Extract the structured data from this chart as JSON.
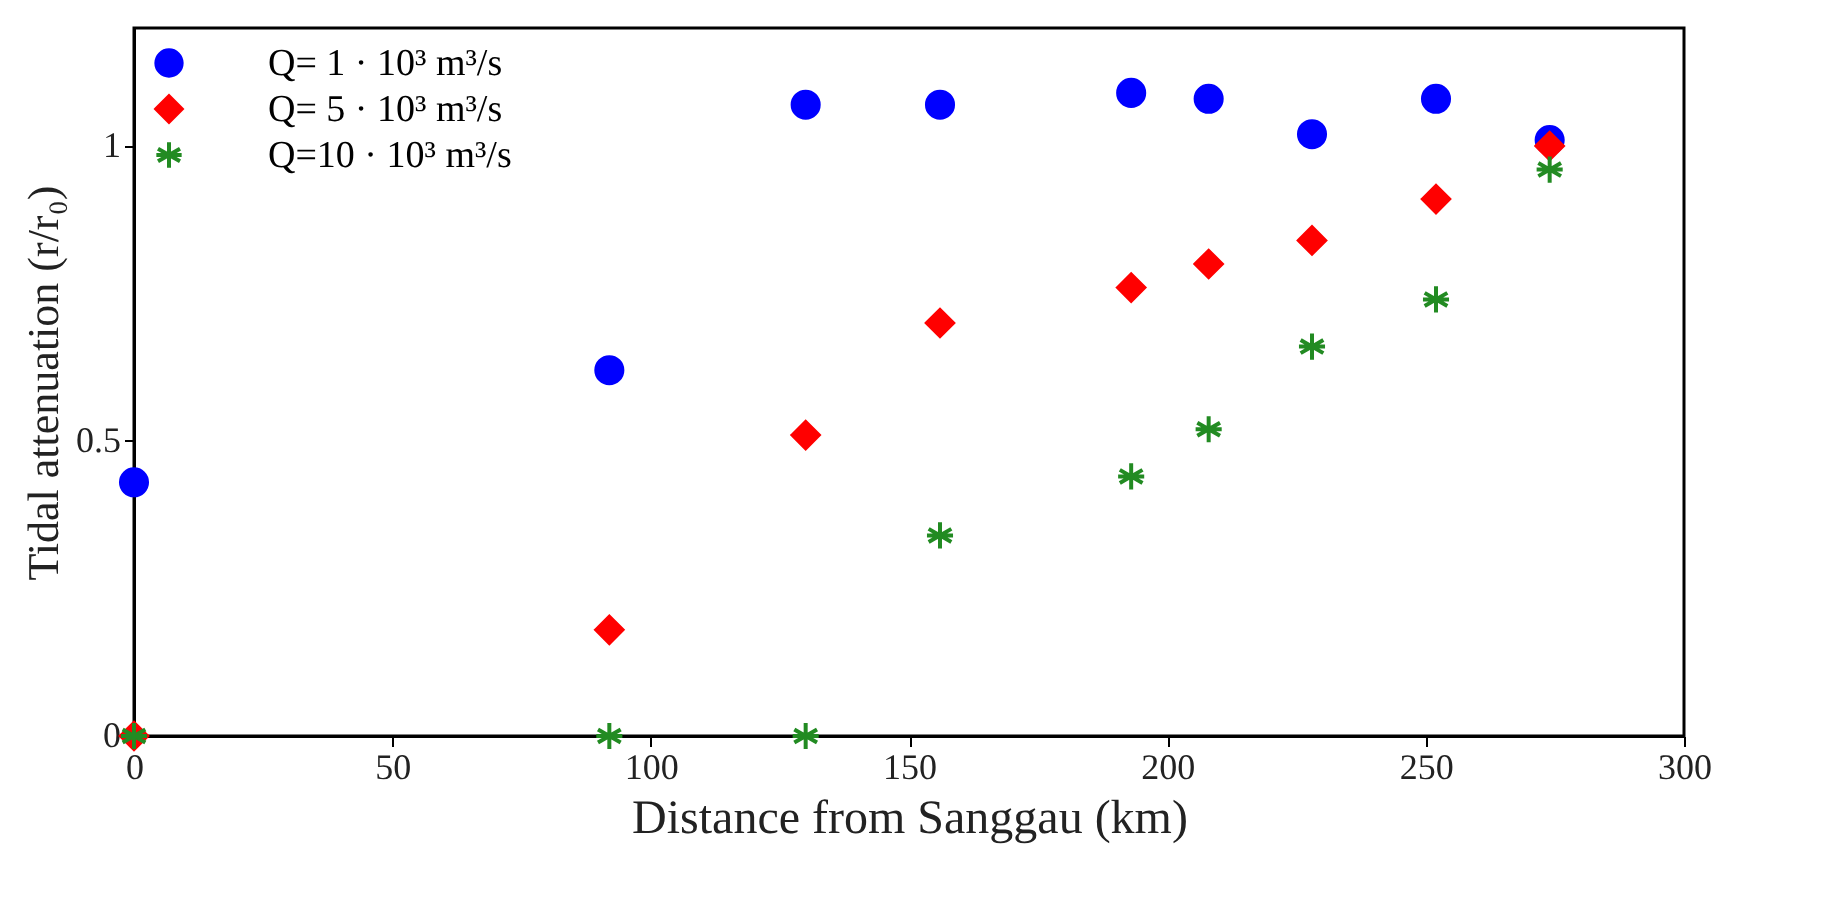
{
  "chart_data": {
    "type": "scatter",
    "xlabel": "Distance from Sanggau (km)",
    "ylabel": "Tidal attenuation (r/r₀)",
    "xlim": [
      0,
      300
    ],
    "xticks": [
      0,
      50,
      100,
      150,
      200,
      250,
      300
    ],
    "ylim": [
      0,
      1.2
    ],
    "yticks": [
      0,
      0.5,
      1
    ],
    "grid": false,
    "legend": "top left",
    "x": [
      0,
      92,
      130,
      156,
      193,
      208,
      228,
      252,
      274
    ],
    "series": [
      {
        "name": "Q= 1 · 10³ m³/s",
        "color": "#0000ff",
        "marker": "circle",
        "values": [
          0.43,
          0.62,
          1.07,
          1.07,
          1.09,
          1.08,
          1.02,
          1.08,
          1.01
        ]
      },
      {
        "name": "Q= 5 · 10³ m³/s",
        "color": "#ff0000",
        "marker": "diamond",
        "values": [
          0,
          0.18,
          0.51,
          0.7,
          0.76,
          0.8,
          0.84,
          0.91,
          1.0
        ]
      },
      {
        "name": "Q=10 · 10³ m³/s",
        "color": "#228b22",
        "marker": "cross",
        "values": [
          0,
          0,
          0,
          0.34,
          0.44,
          0.52,
          0.66,
          0.74,
          0.96
        ]
      }
    ]
  }
}
